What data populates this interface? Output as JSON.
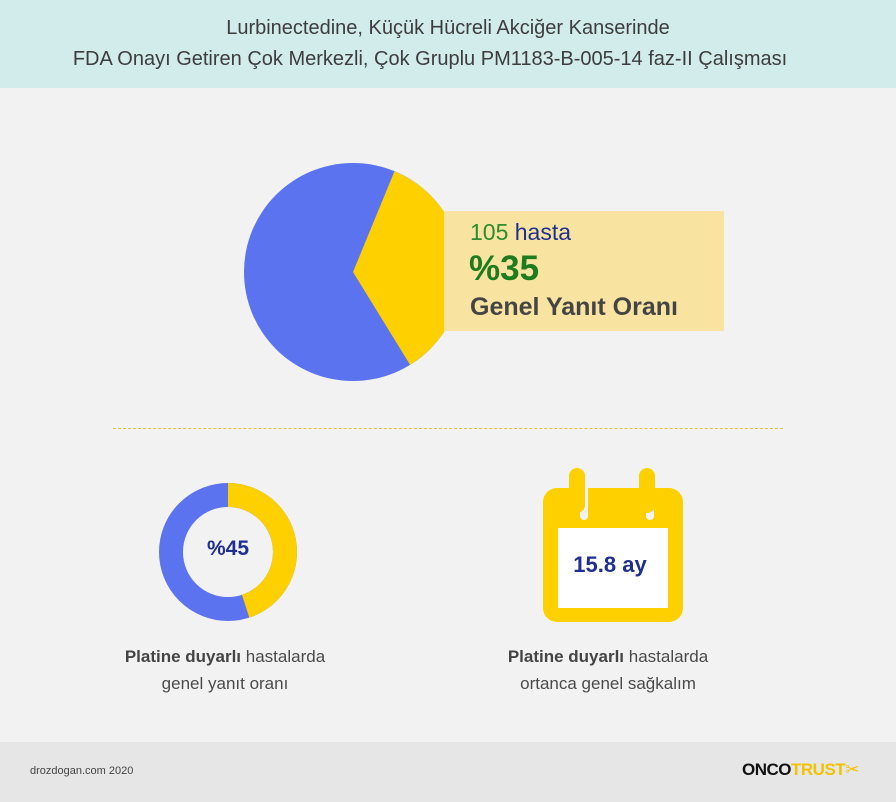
{
  "header": {
    "line1": "Lurbinectedine, Küçük Hücreli Akciğer Kanserinde",
    "line2": "FDA Onayı Getiren Çok Merkezli, Çok Gruplu PM1183-B-005-14 faz-II Çalışması"
  },
  "main_stat": {
    "patient_count": "105",
    "patient_label": "hasta",
    "rate": "%35",
    "rate_fraction": 0.35,
    "description": "Genel Yanıt Oranı"
  },
  "left_stat": {
    "value": "%45",
    "fraction": 0.45,
    "caption_bold": "Platine duyarlı",
    "caption_rest": " hastalarda",
    "caption_line2": "genel yanıt oranı"
  },
  "right_stat": {
    "value": "15.8 ay",
    "caption_bold": "Platine duyarlı",
    "caption_rest": " hastalarda",
    "caption_line2": "ortanca genel sağkalım"
  },
  "footer": {
    "site": "drozdogan.com 2020",
    "logo_part1": "ONCO",
    "logo_part2": "TRUST"
  },
  "colors": {
    "blue": "#5b73ee",
    "yellow": "#ffd000",
    "header_bg": "#d2ebeb",
    "box_bg": "#f8e4a0"
  }
}
